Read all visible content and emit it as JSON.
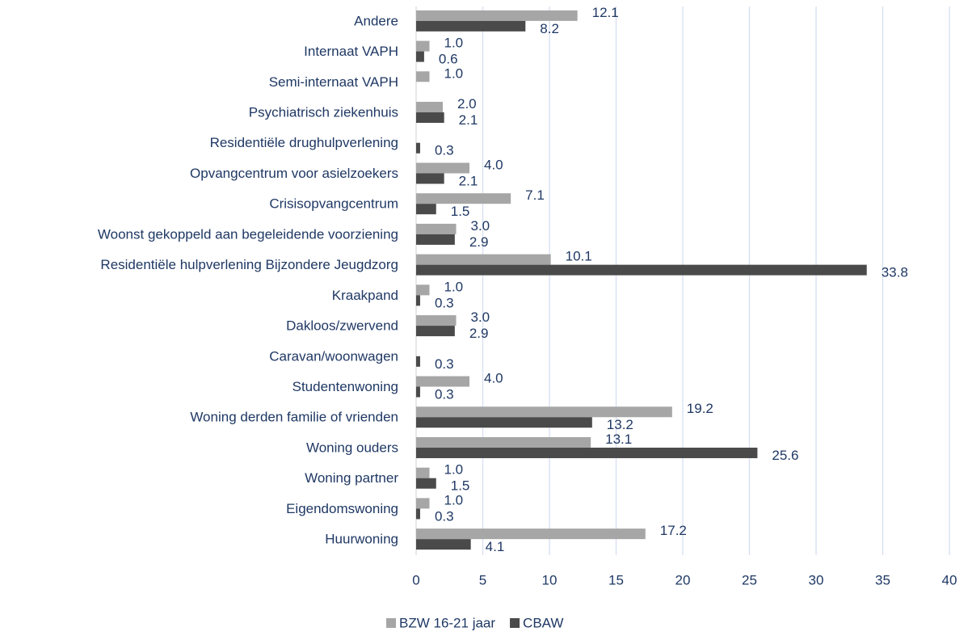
{
  "chart_data": {
    "type": "barh",
    "categories": [
      "Andere",
      "Internaat VAPH",
      "Semi-internaat VAPH",
      "Psychiatrisch ziekenhuis",
      "Residentiële drughulpverlening",
      "Opvangcentrum voor asielzoekers",
      "Crisisopvangcentrum",
      "Woonst gekoppeld aan begeleidende voorziening",
      "Residentiële hulpverlening Bijzondere Jeugdzorg",
      "Kraakpand",
      "Dakloos/zwervend",
      "Caravan/woonwagen",
      "Studentenwoning",
      "Woning derden familie of vrienden",
      "Woning ouders",
      "Woning partner",
      "Eigendomswoning",
      "Huurwoning"
    ],
    "series": [
      {
        "name": "BZW 16-21 jaar",
        "color": "#a6a6a6",
        "values": [
          12.1,
          1.0,
          1.0,
          2.0,
          null,
          4.0,
          7.1,
          3.0,
          10.1,
          1.0,
          3.0,
          null,
          4.0,
          19.2,
          13.1,
          1.0,
          1.0,
          17.2
        ],
        "value_labels": [
          "12.1",
          "1.0",
          "1.0",
          "2.0",
          null,
          "4.0",
          "7.1",
          "3.0",
          "10.1",
          "1.0",
          "3.0",
          null,
          "4.0",
          "19.2",
          "13.1",
          "1.0",
          "1.0",
          "17.2"
        ]
      },
      {
        "name": "CBAW",
        "color": "#4a4a4a",
        "values": [
          8.2,
          0.6,
          null,
          2.1,
          0.3,
          2.1,
          1.5,
          2.9,
          33.8,
          0.3,
          2.9,
          0.3,
          0.3,
          13.2,
          25.6,
          1.5,
          0.3,
          4.1
        ],
        "value_labels": [
          "8.2",
          "0.6",
          null,
          "2.1",
          "0.3",
          "2.1",
          "1.5",
          "2.9",
          "33.8",
          "0.3",
          "2.9",
          "0.3",
          "0.3",
          "13.2",
          "25.6",
          "1.5",
          "0.3",
          "4.1"
        ]
      }
    ],
    "xlim": [
      0,
      40
    ],
    "xticks": [
      0,
      5,
      10,
      15,
      20,
      25,
      30,
      35,
      40
    ],
    "grid": true,
    "legend": "bottom"
  }
}
